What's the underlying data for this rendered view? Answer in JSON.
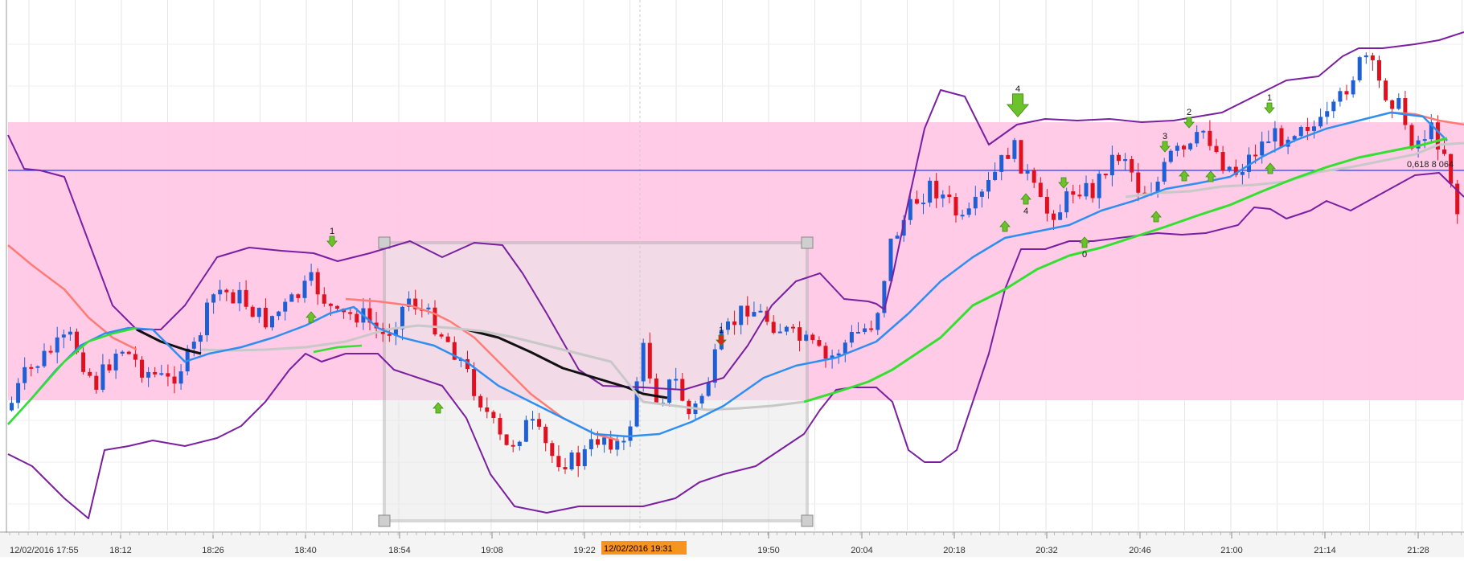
{
  "chart_data": {
    "type": "candlestick",
    "time_axis": {
      "start_label": "12/02/2016 17:55",
      "labels": [
        "18:12",
        "18:26",
        "18:40",
        "18:54",
        "19:08",
        "19:22",
        "19:50",
        "20:04",
        "20:18",
        "20:32",
        "20:46",
        "21:00",
        "21:14",
        "21:28"
      ],
      "cursor_label": "12/02/2016 19:31"
    },
    "horizontal_line": {
      "label": "0,618 8 064"
    },
    "signals": [
      {
        "dir": "down",
        "label": "1"
      },
      {
        "dir": "up",
        "label": ""
      },
      {
        "dir": "up",
        "label": ""
      },
      {
        "dir": "down",
        "label": "1"
      },
      {
        "dir": "down",
        "label": "4"
      },
      {
        "dir": "up",
        "label": "4"
      },
      {
        "dir": "up",
        "label": ""
      },
      {
        "dir": "down",
        "label": ""
      },
      {
        "dir": "up",
        "label": "0"
      },
      {
        "dir": "down",
        "label": "3"
      },
      {
        "dir": "down",
        "label": "2"
      },
      {
        "dir": "up",
        "label": ""
      },
      {
        "dir": "up",
        "label": ""
      },
      {
        "dir": "up",
        "label": ""
      },
      {
        "dir": "down",
        "label": "1"
      },
      {
        "dir": "up",
        "label": ""
      }
    ],
    "colors": {
      "bull": "#1f5fd6",
      "bear": "#e0101e",
      "bollinger": "#7a1fa0",
      "ma_blue": "#2f8ff0",
      "ma_green": "#33e030",
      "ma_salmon": "#ff7b73",
      "ma_gray": "#c8c8c8",
      "ma_black": "#111111",
      "zone": "#ffc8e6",
      "hline": "#2a3cff",
      "arrow_up": "#6cc22a",
      "arrow_down_red": "#e2221b",
      "cursor_label_bg": "#f7931e"
    }
  }
}
